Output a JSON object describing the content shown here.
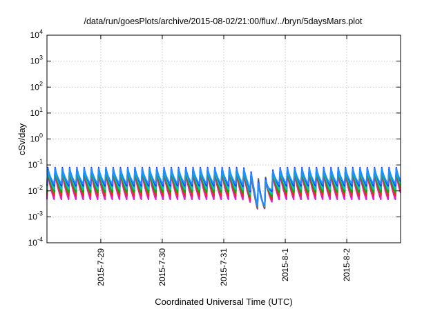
{
  "chart_data": {
    "type": "line",
    "title": "/data/run/goesPlots/archive/2015-08-02/21:00/flux/../bryn/5daysMars.plot",
    "xlabel": "Coordinated Universal Time (UTC)",
    "ylabel": "cSv/day",
    "xlim": [
      "2015-07-28T03:00",
      "2015-08-02T21:00"
    ],
    "x_ticks": [
      {
        "label": "2015-7-29",
        "at": "2015-07-29T00:00"
      },
      {
        "label": "2015-7-30",
        "at": "2015-07-30T00:00"
      },
      {
        "label": "2015-7-31",
        "at": "2015-07-31T00:00"
      },
      {
        "label": "2015-8-1",
        "at": "2015-08-01T00:00"
      },
      {
        "label": "2015-8-2",
        "at": "2015-08-02T00:00"
      }
    ],
    "y_scale": "log",
    "ylim": [
      0.0001,
      10000
    ],
    "y_ticks": [
      {
        "base": "10",
        "exp": "4",
        "value": 10000
      },
      {
        "base": "10",
        "exp": "3",
        "value": 1000
      },
      {
        "base": "10",
        "exp": "2",
        "value": 100
      },
      {
        "base": "10",
        "exp": "1",
        "value": 10
      },
      {
        "base": "10",
        "exp": "0",
        "value": 1
      },
      {
        "base": "10",
        "exp": "-1",
        "value": 0.1
      },
      {
        "base": "10",
        "exp": "-2",
        "value": 0.01
      },
      {
        "base": "10",
        "exp": "-3",
        "value": 0.001
      },
      {
        "base": "10",
        "exp": "-4",
        "value": 0.0001
      }
    ],
    "grid": true,
    "legend": "none",
    "pattern": {
      "first_peak": "2015-07-28T03:20",
      "cycle_hours": 2.833,
      "dip": {
        "at": "2015-07-31T14:30",
        "min_value": 0.0015
      }
    },
    "series": [
      {
        "color": "#ff00ff",
        "peak": 0.055,
        "trough": 0.0045
      },
      {
        "color": "#cc3399",
        "peak": 0.06,
        "trough": 0.0055
      },
      {
        "color": "#ff2020",
        "peak": 0.065,
        "trough": 0.006
      },
      {
        "color": "#00b000",
        "peak": 0.07,
        "trough": 0.008
      },
      {
        "color": "#00c8c8",
        "peak": 0.075,
        "trough": 0.011
      },
      {
        "color": "#3030ff",
        "peak": 0.085,
        "trough": 0.015
      },
      {
        "color": "#1e90ff",
        "peak": 0.075,
        "trough": 0.018
      }
    ]
  }
}
